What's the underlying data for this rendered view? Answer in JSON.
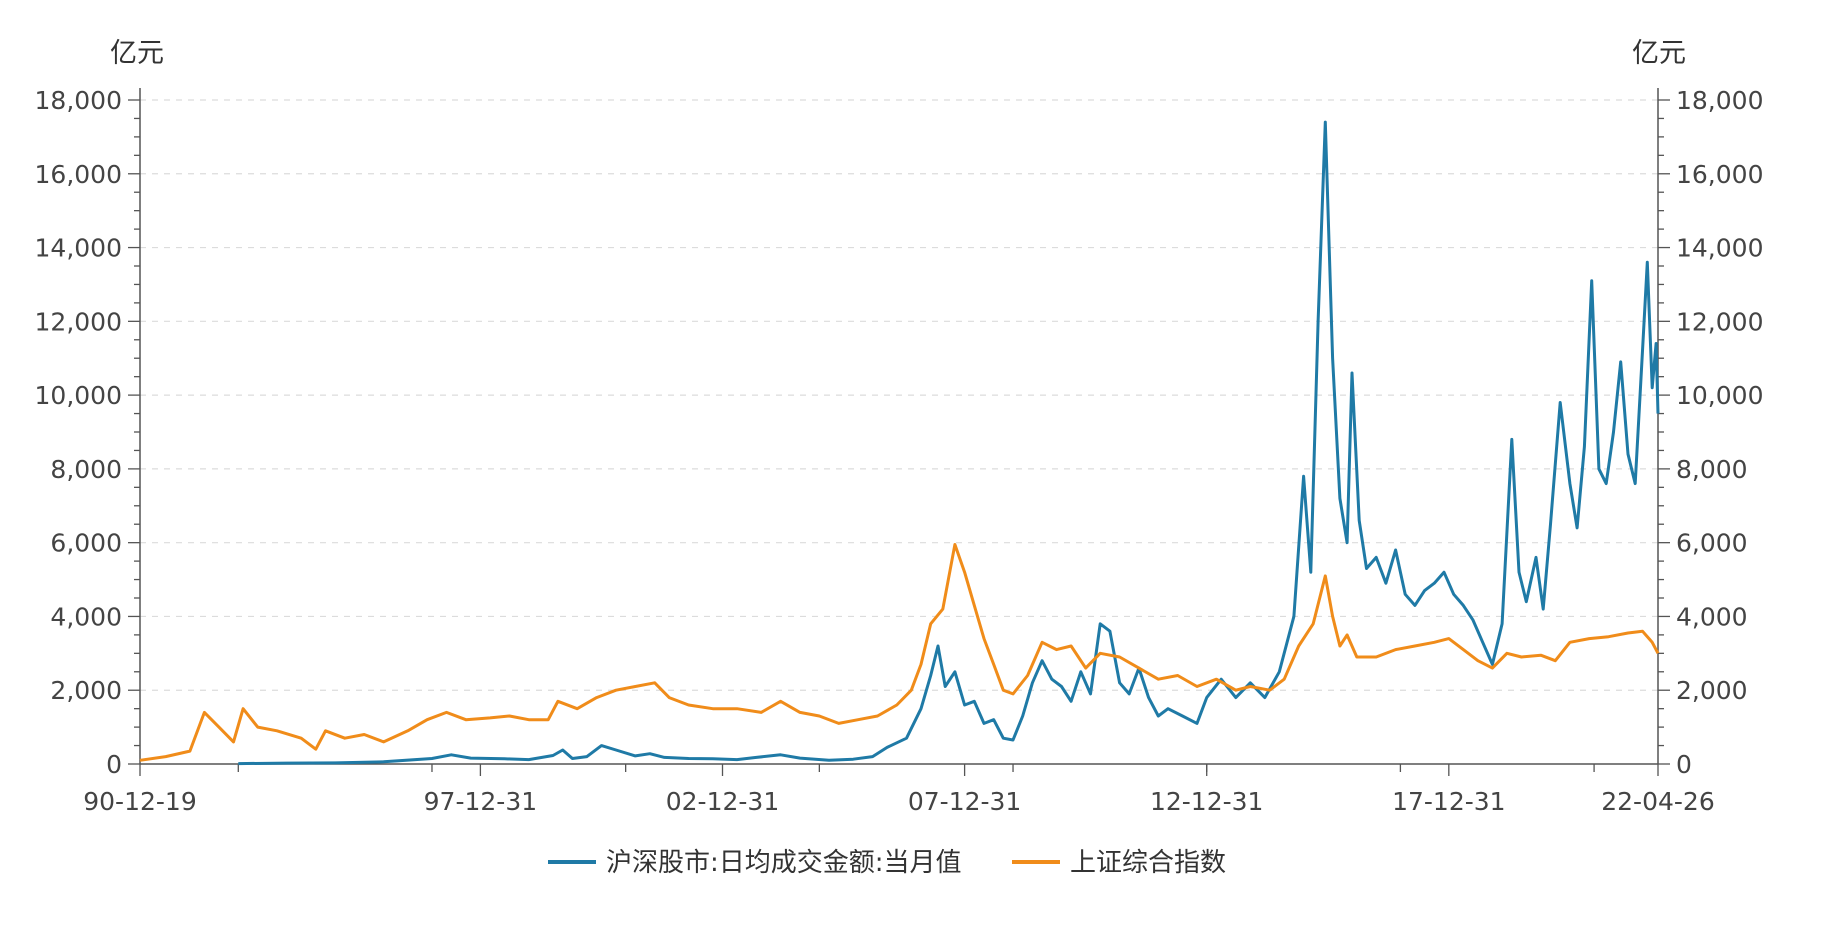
{
  "chart_data": {
    "type": "line",
    "left_unit": "亿元",
    "right_unit": "亿元",
    "x_ticks": [
      "90-12-19",
      "97-12-31",
      "02-12-31",
      "07-12-31",
      "12-12-31",
      "17-12-31",
      "22-04-26"
    ],
    "x_tick_positions": [
      1990.97,
      1998.0,
      2003.0,
      2008.0,
      2013.0,
      2018.0,
      2022.32
    ],
    "y_ticks": [
      "0",
      "2,000",
      "4,000",
      "6,000",
      "8,000",
      "10,000",
      "12,000",
      "14,000",
      "16,000",
      "18,000"
    ],
    "xlim": [
      1990.97,
      2022.32
    ],
    "ylim": [
      0,
      18000
    ],
    "grid": true,
    "legend_position": "bottom",
    "colors": {
      "turnover": "#1f7aa6",
      "index": "#f08c1a"
    },
    "series": [
      {
        "name": "沪深股市:日均成交金额:当月值",
        "axis": "left",
        "color": "#1f7aa6",
        "points": [
          [
            1993.0,
            10
          ],
          [
            1994.0,
            25
          ],
          [
            1995.0,
            30
          ],
          [
            1996.0,
            60
          ],
          [
            1997.0,
            150
          ],
          [
            1997.4,
            250
          ],
          [
            1997.8,
            160
          ],
          [
            1998.5,
            140
          ],
          [
            1999.0,
            120
          ],
          [
            1999.5,
            230
          ],
          [
            1999.7,
            380
          ],
          [
            1999.9,
            150
          ],
          [
            2000.2,
            200
          ],
          [
            2000.5,
            500
          ],
          [
            2000.8,
            380
          ],
          [
            2001.2,
            220
          ],
          [
            2001.5,
            280
          ],
          [
            2001.8,
            180
          ],
          [
            2002.3,
            150
          ],
          [
            2002.8,
            140
          ],
          [
            2003.3,
            120
          ],
          [
            2003.7,
            180
          ],
          [
            2004.2,
            250
          ],
          [
            2004.6,
            160
          ],
          [
            2005.2,
            100
          ],
          [
            2005.7,
            130
          ],
          [
            2006.1,
            200
          ],
          [
            2006.4,
            450
          ],
          [
            2006.8,
            700
          ],
          [
            2007.1,
            1500
          ],
          [
            2007.3,
            2400
          ],
          [
            2007.45,
            3200
          ],
          [
            2007.6,
            2100
          ],
          [
            2007.8,
            2500
          ],
          [
            2008.0,
            1600
          ],
          [
            2008.2,
            1700
          ],
          [
            2008.4,
            1100
          ],
          [
            2008.6,
            1200
          ],
          [
            2008.8,
            700
          ],
          [
            2009.0,
            650
          ],
          [
            2009.2,
            1300
          ],
          [
            2009.4,
            2200
          ],
          [
            2009.6,
            2800
          ],
          [
            2009.8,
            2300
          ],
          [
            2010.0,
            2100
          ],
          [
            2010.2,
            1700
          ],
          [
            2010.4,
            2500
          ],
          [
            2010.6,
            1900
          ],
          [
            2010.8,
            3800
          ],
          [
            2011.0,
            3600
          ],
          [
            2011.2,
            2200
          ],
          [
            2011.4,
            1900
          ],
          [
            2011.6,
            2600
          ],
          [
            2011.8,
            1800
          ],
          [
            2012.0,
            1300
          ],
          [
            2012.2,
            1500
          ],
          [
            2012.5,
            1300
          ],
          [
            2012.8,
            1100
          ],
          [
            2013.0,
            1800
          ],
          [
            2013.3,
            2300
          ],
          [
            2013.6,
            1800
          ],
          [
            2013.9,
            2200
          ],
          [
            2014.2,
            1800
          ],
          [
            2014.5,
            2500
          ],
          [
            2014.8,
            4000
          ],
          [
            2015.0,
            7800
          ],
          [
            2015.15,
            5200
          ],
          [
            2015.3,
            12000
          ],
          [
            2015.45,
            17400
          ],
          [
            2015.6,
            11000
          ],
          [
            2015.75,
            7200
          ],
          [
            2015.9,
            6000
          ],
          [
            2016.0,
            10600
          ],
          [
            2016.15,
            6600
          ],
          [
            2016.3,
            5300
          ],
          [
            2016.5,
            5600
          ],
          [
            2016.7,
            4900
          ],
          [
            2016.9,
            5800
          ],
          [
            2017.1,
            4600
          ],
          [
            2017.3,
            4300
          ],
          [
            2017.5,
            4700
          ],
          [
            2017.7,
            4900
          ],
          [
            2017.9,
            5200
          ],
          [
            2018.1,
            4600
          ],
          [
            2018.3,
            4300
          ],
          [
            2018.5,
            3900
          ],
          [
            2018.7,
            3300
          ],
          [
            2018.9,
            2700
          ],
          [
            2019.1,
            3800
          ],
          [
            2019.3,
            8800
          ],
          [
            2019.45,
            5200
          ],
          [
            2019.6,
            4400
          ],
          [
            2019.8,
            5600
          ],
          [
            2019.95,
            4200
          ],
          [
            2020.1,
            6500
          ],
          [
            2020.3,
            9800
          ],
          [
            2020.5,
            7600
          ],
          [
            2020.65,
            6400
          ],
          [
            2020.8,
            8600
          ],
          [
            2020.95,
            13100
          ],
          [
            2021.1,
            8000
          ],
          [
            2021.25,
            7600
          ],
          [
            2021.4,
            9000
          ],
          [
            2021.55,
            10900
          ],
          [
            2021.7,
            8400
          ],
          [
            2021.85,
            7600
          ],
          [
            2022.0,
            11200
          ],
          [
            2022.1,
            13600
          ],
          [
            2022.2,
            10200
          ],
          [
            2022.28,
            11400
          ],
          [
            2022.32,
            9500
          ]
        ]
      },
      {
        "name": "上证综合指数",
        "axis": "right",
        "color": "#f08c1a",
        "points": [
          [
            1990.97,
            100
          ],
          [
            1991.5,
            200
          ],
          [
            1992.0,
            350
          ],
          [
            1992.3,
            1400
          ],
          [
            1992.6,
            1000
          ],
          [
            1992.9,
            600
          ],
          [
            1993.1,
            1500
          ],
          [
            1993.4,
            1000
          ],
          [
            1993.8,
            900
          ],
          [
            1994.3,
            700
          ],
          [
            1994.6,
            400
          ],
          [
            1994.8,
            900
          ],
          [
            1995.2,
            700
          ],
          [
            1995.6,
            800
          ],
          [
            1996.0,
            600
          ],
          [
            1996.5,
            900
          ],
          [
            1996.9,
            1200
          ],
          [
            1997.3,
            1400
          ],
          [
            1997.7,
            1200
          ],
          [
            1998.2,
            1250
          ],
          [
            1998.6,
            1300
          ],
          [
            1999.0,
            1200
          ],
          [
            1999.4,
            1200
          ],
          [
            1999.6,
            1700
          ],
          [
            2000.0,
            1500
          ],
          [
            2000.4,
            1800
          ],
          [
            2000.8,
            2000
          ],
          [
            2001.2,
            2100
          ],
          [
            2001.6,
            2200
          ],
          [
            2001.9,
            1800
          ],
          [
            2002.3,
            1600
          ],
          [
            2002.8,
            1500
          ],
          [
            2003.3,
            1500
          ],
          [
            2003.8,
            1400
          ],
          [
            2004.2,
            1700
          ],
          [
            2004.6,
            1400
          ],
          [
            2005.0,
            1300
          ],
          [
            2005.4,
            1100
          ],
          [
            2005.8,
            1200
          ],
          [
            2006.2,
            1300
          ],
          [
            2006.6,
            1600
          ],
          [
            2006.9,
            2000
          ],
          [
            2007.1,
            2700
          ],
          [
            2007.3,
            3800
          ],
          [
            2007.55,
            4200
          ],
          [
            2007.8,
            5950
          ],
          [
            2008.0,
            5200
          ],
          [
            2008.2,
            4300
          ],
          [
            2008.4,
            3400
          ],
          [
            2008.6,
            2700
          ],
          [
            2008.8,
            2000
          ],
          [
            2009.0,
            1900
          ],
          [
            2009.3,
            2400
          ],
          [
            2009.6,
            3300
          ],
          [
            2009.9,
            3100
          ],
          [
            2010.2,
            3200
          ],
          [
            2010.5,
            2600
          ],
          [
            2010.8,
            3000
          ],
          [
            2011.2,
            2900
          ],
          [
            2011.6,
            2600
          ],
          [
            2012.0,
            2300
          ],
          [
            2012.4,
            2400
          ],
          [
            2012.8,
            2100
          ],
          [
            2013.2,
            2300
          ],
          [
            2013.6,
            2000
          ],
          [
            2013.9,
            2100
          ],
          [
            2014.3,
            2000
          ],
          [
            2014.6,
            2300
          ],
          [
            2014.9,
            3200
          ],
          [
            2015.2,
            3800
          ],
          [
            2015.45,
            5100
          ],
          [
            2015.6,
            4000
          ],
          [
            2015.75,
            3200
          ],
          [
            2015.9,
            3500
          ],
          [
            2016.1,
            2900
          ],
          [
            2016.5,
            2900
          ],
          [
            2016.9,
            3100
          ],
          [
            2017.3,
            3200
          ],
          [
            2017.7,
            3300
          ],
          [
            2018.0,
            3400
          ],
          [
            2018.3,
            3100
          ],
          [
            2018.6,
            2800
          ],
          [
            2018.9,
            2600
          ],
          [
            2019.2,
            3000
          ],
          [
            2019.5,
            2900
          ],
          [
            2019.9,
            2950
          ],
          [
            2020.2,
            2800
          ],
          [
            2020.5,
            3300
          ],
          [
            2020.9,
            3400
          ],
          [
            2021.3,
            3450
          ],
          [
            2021.7,
            3550
          ],
          [
            2022.0,
            3600
          ],
          [
            2022.2,
            3300
          ],
          [
            2022.32,
            3000
          ]
        ]
      }
    ]
  }
}
